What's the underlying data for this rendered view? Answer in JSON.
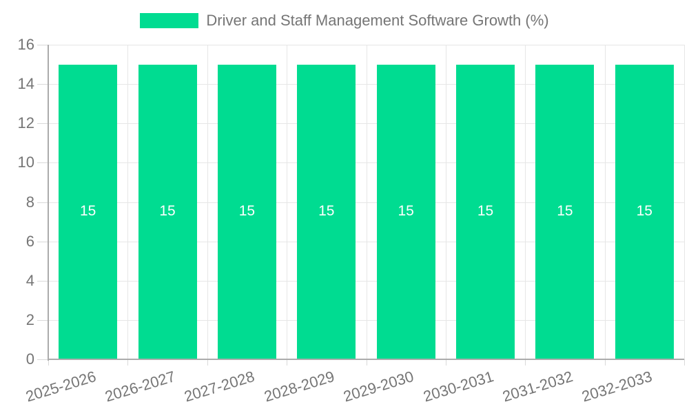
{
  "chart_data": {
    "type": "bar",
    "title": "",
    "categories": [
      "2025-2026",
      "2026-2027",
      "2027-2028",
      "2028-2029",
      "2029-2030",
      "2030-2031",
      "2031-2032",
      "2032-2033"
    ],
    "series": [
      {
        "name": "Driver and Staff Management Software Growth (%)",
        "values": [
          15,
          15,
          15,
          15,
          15,
          15,
          15,
          15
        ],
        "bar_labels": [
          "15",
          "15",
          "15",
          "15",
          "15",
          "15",
          "15",
          "15"
        ],
        "color": "#00dc91"
      }
    ],
    "xlabel": "",
    "ylabel": "",
    "ylim": [
      0,
      16
    ],
    "ytick_step": 2,
    "ytick_labels": [
      "0",
      "2",
      "4",
      "6",
      "8",
      "10",
      "12",
      "14",
      "16"
    ],
    "grid": "both",
    "legend_position": "top-center",
    "bar_label_position": "center",
    "x_label_rotation_deg": -17
  },
  "colors": {
    "bar": "#00dc91",
    "text": "#757575",
    "bar_value_text": "#ffffff",
    "gridline": "#e6e6e6",
    "axis": "#ababab",
    "tick": "#d9d9d9",
    "background": "#ffffff"
  }
}
